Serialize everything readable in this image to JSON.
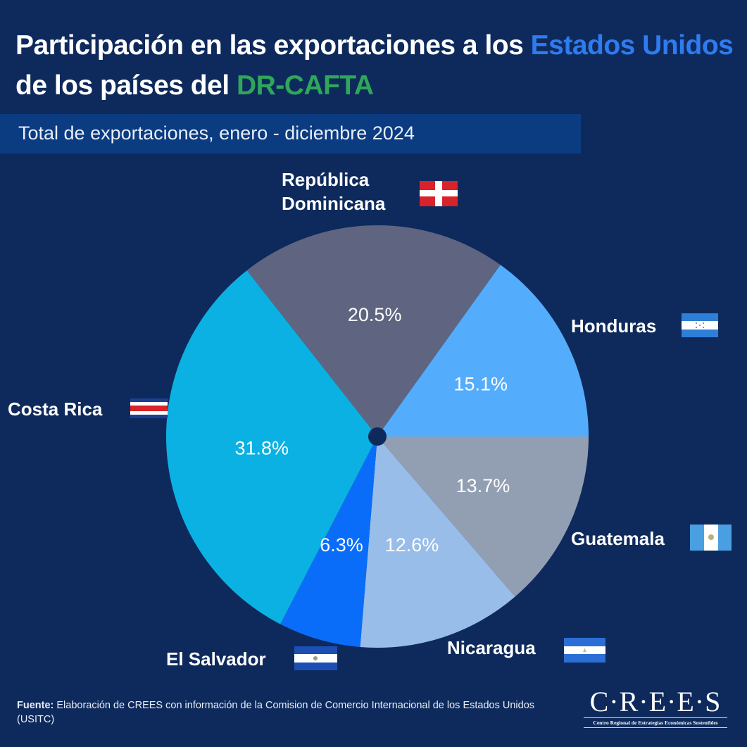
{
  "header": {
    "title_part1": "Participación en las exportaciones a los ",
    "title_highlight1": "Estados Unidos",
    "title_part2": " de los países del ",
    "title_highlight2": "DR-CAFTA",
    "subtitle": "Total de exportaciones, enero - diciembre 2024"
  },
  "colors": {
    "background": "#0e2a5c",
    "highlight_blue": "#2f7bf0",
    "highlight_green": "#2fa65a"
  },
  "chart_data": {
    "type": "pie",
    "title": "Participación en las exportaciones a los Estados Unidos de los países del DR-CAFTA",
    "subtitle": "Total de exportaciones, enero - diciembre 2024",
    "unit": "%",
    "start": "3 o'clock, clockwise",
    "slices": [
      {
        "name": "Guatemala",
        "value": 13.7,
        "label": "13.7%",
        "color": "#929fb3",
        "flag": "guatemala-flag"
      },
      {
        "name": "Nicaragua",
        "value": 12.6,
        "label": "12.6%",
        "color": "#98bde8",
        "flag": "nicaragua-flag"
      },
      {
        "name": "El Salvador",
        "value": 6.3,
        "label": "6.3%",
        "color": "#0a6dfa",
        "flag": "el-salvador-flag"
      },
      {
        "name": "Costa Rica",
        "value": 31.8,
        "label": "31.8%",
        "color": "#0bb1e2",
        "flag": "costa-rica-flag"
      },
      {
        "name": "República Dominicana",
        "value": 20.5,
        "label": "20.5%",
        "color": "#5f6580",
        "flag": "dominican-republic-flag"
      },
      {
        "name": "Honduras",
        "value": 15.1,
        "label": "15.1%",
        "color": "#53adfc",
        "flag": "honduras-flag"
      }
    ]
  },
  "countries": {
    "dominicana_line1": "República",
    "dominicana_line2": "Dominicana",
    "honduras": "Honduras",
    "costa_rica": "Costa Rica",
    "guatemala": "Guatemala",
    "el_salvador": "El Salvador",
    "nicaragua": "Nicaragua"
  },
  "footer": {
    "source_label": "Fuente:",
    "source_text": " Elaboración de CREES con información de la Comision de Comercio Internacional de los Estados Unidos (USITC)"
  },
  "logo": {
    "name": "C·R·E·E·S",
    "tagline": "Centro Regional de Estrategias Económicas Sostenibles"
  }
}
